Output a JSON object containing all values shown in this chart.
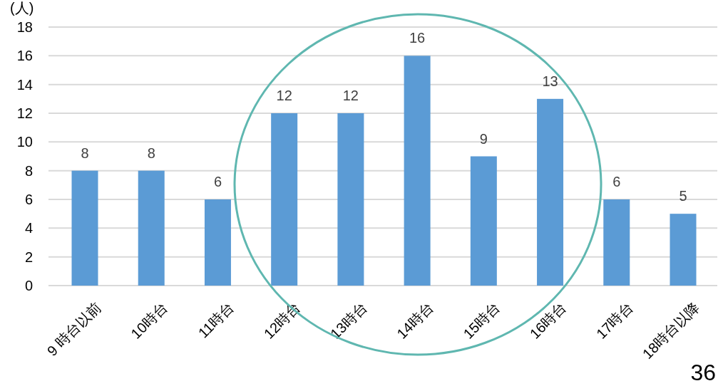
{
  "chart_data": {
    "type": "bar",
    "ylabel": "(人)",
    "categories": [
      "9 時台以前",
      "10時台",
      "11時台",
      "12時台",
      "13時台",
      "14時台",
      "15時台",
      "16時台",
      "17時台",
      "18時台以降"
    ],
    "values": [
      8,
      8,
      6,
      12,
      12,
      16,
      9,
      13,
      6,
      5
    ],
    "color": "#5b9bd5",
    "ylim": [
      0,
      18
    ],
    "yticks": [
      0,
      2,
      4,
      6,
      8,
      10,
      12,
      14,
      16,
      18
    ],
    "grid": "y",
    "data_labels": true,
    "annotations": [
      "36"
    ]
  }
}
